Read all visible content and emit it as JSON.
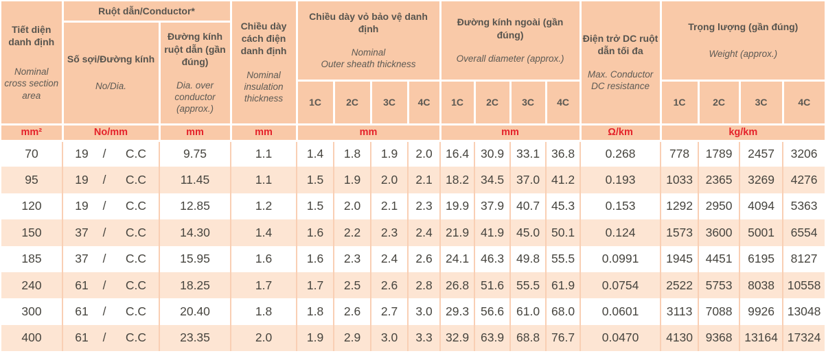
{
  "colors": {
    "header_bg": "#f9c9a8",
    "row_bg": "#ffffff",
    "row_alt_bg": "#fde5d3",
    "column_divider": "#f9cfb4",
    "unit_text_red": "#e4222a",
    "header_text": "#57544e",
    "data_text": "#47453f"
  },
  "header": {
    "area_vi": "Tiết diện danh định",
    "area_en": "Nominal cross section area",
    "conductor_group": "Ruột dẫn/Conductor*",
    "no_dia_vi": "Số sợi/Đường kính",
    "no_dia_en": "No/Dia.",
    "dia_over_vi": "Đường kính ruột dẫn (gần đúng)",
    "dia_over_en": "Dia. over conductor (approx.)",
    "insulation_vi": "Chiều dày cách điện danh định",
    "insulation_en": "Nominal insulation thickness",
    "sheath_vi": "Chiều dày vỏ bảo vệ danh định",
    "sheath_en": "Nominal\nOuter sheath thickness",
    "overall_vi": "Đường kính ngoài (gần đúng)",
    "overall_en": "Overall diameter (approx.)",
    "resistance_vi": "Điện trở DC ruột dẫn tối đa",
    "resistance_en": "Max. Conductor DC resistance",
    "weight_vi": "Trọng lượng (gần đúng)",
    "weight_en": "Weight (approx.)",
    "cores": [
      "1C",
      "2C",
      "3C",
      "4C"
    ]
  },
  "units": {
    "area": "mm²",
    "no_dia": "No/mm",
    "dia": "mm",
    "insulation": "mm",
    "sheath": "mm",
    "overall": "mm",
    "resistance": "Ω/km",
    "weight": "kg/km"
  },
  "no_dia_separator": "/",
  "rows": [
    {
      "area": "70",
      "strands": "19",
      "material": "C.C",
      "dia": "9.75",
      "insulation": "1.1",
      "sheath": [
        "1.4",
        "1.8",
        "1.9",
        "2.0"
      ],
      "overall": [
        "16.4",
        "30.9",
        "33.1",
        "36.8"
      ],
      "resistance": "0.268",
      "weight": [
        "778",
        "1789",
        "2457",
        "3206"
      ]
    },
    {
      "area": "95",
      "strands": "19",
      "material": "C.C",
      "dia": "11.45",
      "insulation": "1.1",
      "sheath": [
        "1.5",
        "1.9",
        "2.0",
        "2.1"
      ],
      "overall": [
        "18.2",
        "34.5",
        "37.0",
        "41.2"
      ],
      "resistance": "0.193",
      "weight": [
        "1033",
        "2365",
        "3269",
        "4276"
      ]
    },
    {
      "area": "120",
      "strands": "19",
      "material": "C.C",
      "dia": "12.85",
      "insulation": "1.2",
      "sheath": [
        "1.5",
        "2.0",
        "2.1",
        "2.3"
      ],
      "overall": [
        "19.9",
        "37.9",
        "40.7",
        "45.3"
      ],
      "resistance": "0.153",
      "weight": [
        "1292",
        "2950",
        "4094",
        "5363"
      ]
    },
    {
      "area": "150",
      "strands": "37",
      "material": "C.C",
      "dia": "14.30",
      "insulation": "1.4",
      "sheath": [
        "1.6",
        "2.2",
        "2.3",
        "2.4"
      ],
      "overall": [
        "21.9",
        "41.9",
        "45.0",
        "50.1"
      ],
      "resistance": "0.124",
      "weight": [
        "1573",
        "3600",
        "5001",
        "6554"
      ]
    },
    {
      "area": "185",
      "strands": "37",
      "material": "C.C",
      "dia": "15.95",
      "insulation": "1.6",
      "sheath": [
        "1.6",
        "2.3",
        "2.4",
        "2.6"
      ],
      "overall": [
        "24.1",
        "46.3",
        "49.8",
        "55.5"
      ],
      "resistance": "0.0991",
      "weight": [
        "1945",
        "4451",
        "6195",
        "8127"
      ]
    },
    {
      "area": "240",
      "strands": "61",
      "material": "C.C",
      "dia": "18.25",
      "insulation": "1.7",
      "sheath": [
        "1.7",
        "2.5",
        "2.6",
        "2.8"
      ],
      "overall": [
        "26.8",
        "51.6",
        "55.5",
        "61.9"
      ],
      "resistance": "0.0754",
      "weight": [
        "2522",
        "5753",
        "8038",
        "10558"
      ]
    },
    {
      "area": "300",
      "strands": "61",
      "material": "C.C",
      "dia": "20.40",
      "insulation": "1.8",
      "sheath": [
        "1.8",
        "2.6",
        "2.7",
        "3.0"
      ],
      "overall": [
        "29.3",
        "56.6",
        "61.0",
        "68.0"
      ],
      "resistance": "0.0601",
      "weight": [
        "3113",
        "7088",
        "9926",
        "13048"
      ]
    },
    {
      "area": "400",
      "strands": "61",
      "material": "C.C",
      "dia": "23.35",
      "insulation": "2.0",
      "sheath": [
        "1.9",
        "2.9",
        "3.0",
        "3.3"
      ],
      "overall": [
        "32.9",
        "63.9",
        "68.8",
        "76.7"
      ],
      "resistance": "0.0470",
      "weight": [
        "4130",
        "9368",
        "13164",
        "17324"
      ]
    }
  ]
}
